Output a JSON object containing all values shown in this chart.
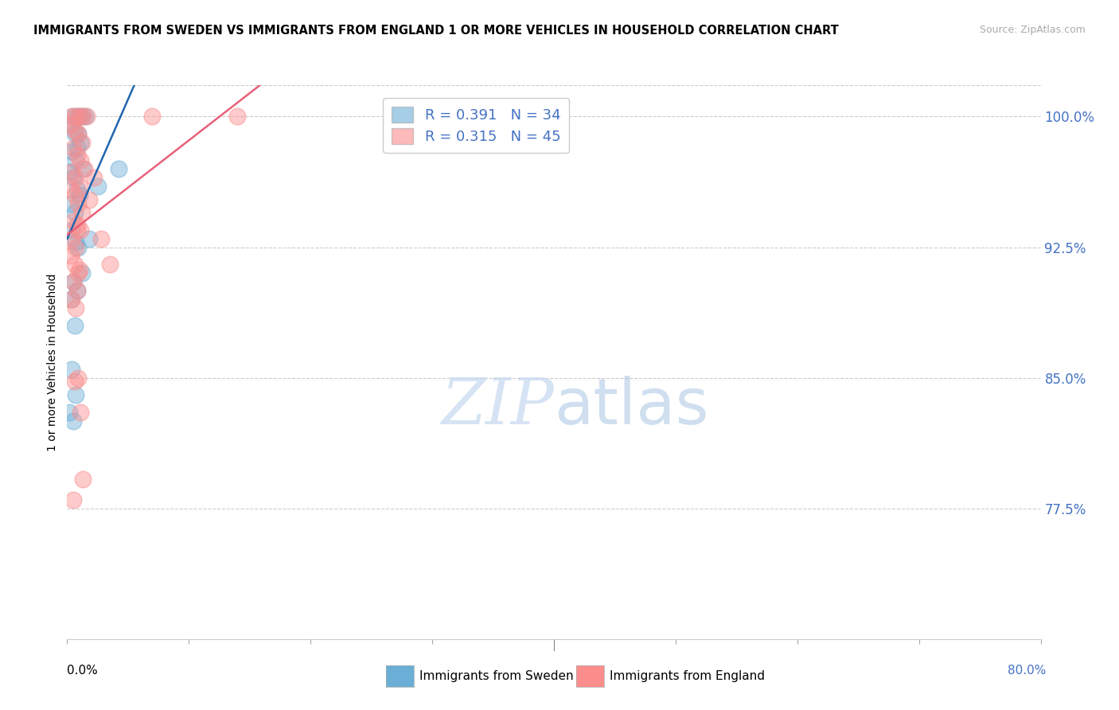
{
  "title": "IMMIGRANTS FROM SWEDEN VS IMMIGRANTS FROM ENGLAND 1 OR MORE VEHICLES IN HOUSEHOLD CORRELATION CHART",
  "source": "Source: ZipAtlas.com",
  "ylabel": "1 or more Vehicles in Household",
  "xmin": 0.0,
  "xmax": 80.0,
  "ymin": 70.0,
  "ymax": 101.8,
  "yticks": [
    77.5,
    85.0,
    92.5,
    100.0
  ],
  "ytick_labels": [
    "77.5%",
    "85.0%",
    "92.5%",
    "100.0%"
  ],
  "xticks": [
    0.0,
    10.0,
    20.0,
    30.0,
    40.0,
    50.0,
    60.0,
    70.0,
    80.0
  ],
  "legend_label_sweden": "Immigrants from Sweden",
  "legend_label_england": "Immigrants from England",
  "R_sweden": 0.391,
  "N_sweden": 34,
  "R_england": 0.315,
  "N_england": 45,
  "sweden_color": "#6baed6",
  "england_color": "#fc8d8d",
  "sweden_line_color": "#2166ac",
  "england_line_color": "#e8607a",
  "background_color": "#ffffff",
  "watermark_zip": "ZIP",
  "watermark_atlas": "atlas",
  "sweden_x": [
    0.5,
    0.8,
    1.0,
    1.2,
    1.5,
    0.3,
    0.6,
    0.9,
    1.1,
    0.4,
    0.7,
    1.3,
    0.2,
    0.5,
    0.8,
    1.0,
    0.3,
    0.6,
    2.5,
    1.8,
    0.4,
    0.7,
    0.9,
    1.2,
    0.5,
    0.8,
    0.3,
    0.6,
    0.4,
    0.7,
    0.2,
    0.5,
    0.8,
    4.2
  ],
  "sweden_y": [
    100.0,
    100.0,
    100.0,
    100.0,
    100.0,
    99.5,
    99.0,
    99.0,
    98.5,
    98.0,
    97.5,
    97.0,
    96.8,
    96.5,
    95.8,
    95.5,
    95.0,
    94.5,
    96.0,
    93.0,
    93.5,
    92.8,
    92.5,
    91.0,
    90.5,
    90.0,
    89.5,
    88.0,
    85.5,
    84.0,
    83.0,
    82.5,
    98.2,
    97.0
  ],
  "england_x": [
    0.4,
    0.7,
    1.0,
    1.3,
    1.6,
    0.3,
    0.6,
    0.9,
    1.2,
    0.5,
    0.8,
    1.1,
    1.4,
    0.4,
    0.7,
    1.0,
    0.3,
    0.6,
    0.9,
    1.2,
    0.5,
    0.8,
    1.1,
    0.4,
    0.7,
    0.3,
    0.6,
    0.9,
    0.5,
    0.8,
    0.4,
    0.7,
    1.8,
    2.2,
    2.8,
    3.5,
    7.0,
    0.6,
    0.9,
    1.1,
    1.3,
    0.5,
    0.8,
    1.0,
    14.0
  ],
  "england_y": [
    100.0,
    100.0,
    100.0,
    100.0,
    100.0,
    99.5,
    99.2,
    99.0,
    98.5,
    98.2,
    97.8,
    97.5,
    97.0,
    96.8,
    96.5,
    96.0,
    95.8,
    95.5,
    95.0,
    94.5,
    94.0,
    93.8,
    93.5,
    93.0,
    92.5,
    92.0,
    91.5,
    91.0,
    90.5,
    90.0,
    89.5,
    89.0,
    95.2,
    96.5,
    93.0,
    91.5,
    100.0,
    84.8,
    85.0,
    83.0,
    79.2,
    78.0,
    93.5,
    91.2,
    100.0
  ]
}
